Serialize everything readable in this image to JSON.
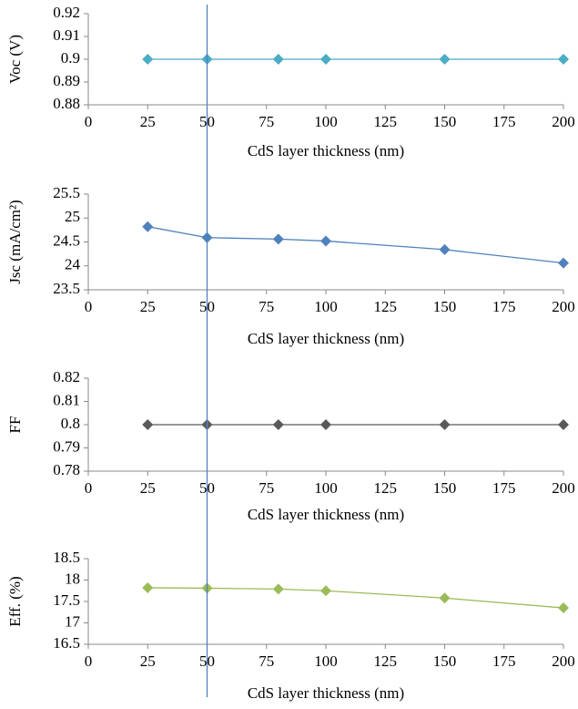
{
  "chart_data": [
    {
      "type": "line",
      "ylabel": "Voc (V)",
      "xlabel": "CdS layer thickness (nm)",
      "x": [
        25,
        50,
        80,
        100,
        150,
        200
      ],
      "values": [
        0.9,
        0.9,
        0.9,
        0.9,
        0.9,
        0.9
      ],
      "color": "#4bacc6",
      "xlim": [
        0,
        200
      ],
      "xticks": [
        0,
        25,
        50,
        75,
        100,
        125,
        150,
        175,
        200
      ],
      "ylim": [
        0.88,
        0.92
      ],
      "yticks": [
        0.88,
        0.89,
        0.9,
        0.91,
        0.92
      ],
      "vline": 50,
      "vline_color": "#4f81bd"
    },
    {
      "type": "line",
      "ylabel": "Jsc (mA/cm²)",
      "xlabel": "CdS layer thickness (nm)",
      "x": [
        25,
        50,
        80,
        100,
        150,
        200
      ],
      "values": [
        24.82,
        24.59,
        24.56,
        24.52,
        24.34,
        24.06
      ],
      "color": "#4f81bd",
      "xlim": [
        0,
        200
      ],
      "xticks": [
        0,
        25,
        50,
        75,
        100,
        125,
        150,
        175,
        200
      ],
      "ylim": [
        23.5,
        25.5
      ],
      "yticks": [
        23.5,
        24,
        24.5,
        25,
        25.5
      ]
    },
    {
      "type": "line",
      "ylabel": "FF",
      "xlabel": "CdS layer thickness (nm)",
      "x": [
        25,
        50,
        80,
        100,
        150,
        200
      ],
      "values": [
        0.8,
        0.8,
        0.8,
        0.8,
        0.8,
        0.8
      ],
      "color": "#595959",
      "xlim": [
        0,
        200
      ],
      "xticks": [
        0,
        25,
        50,
        75,
        100,
        125,
        150,
        175,
        200
      ],
      "ylim": [
        0.78,
        0.82
      ],
      "yticks": [
        0.78,
        0.79,
        0.8,
        0.81,
        0.82
      ]
    },
    {
      "type": "line",
      "ylabel": "Eff. (%)",
      "xlabel": "CdS layer thickness (nm)",
      "x": [
        25,
        50,
        80,
        100,
        150,
        200
      ],
      "values": [
        17.82,
        17.81,
        17.79,
        17.75,
        17.58,
        17.35
      ],
      "color": "#9bbb59",
      "xlim": [
        0,
        200
      ],
      "xticks": [
        0,
        25,
        50,
        75,
        100,
        125,
        150,
        175,
        200
      ],
      "ylim": [
        16.5,
        18.5
      ],
      "yticks": [
        16.5,
        17,
        17.5,
        18,
        18.5
      ]
    }
  ]
}
